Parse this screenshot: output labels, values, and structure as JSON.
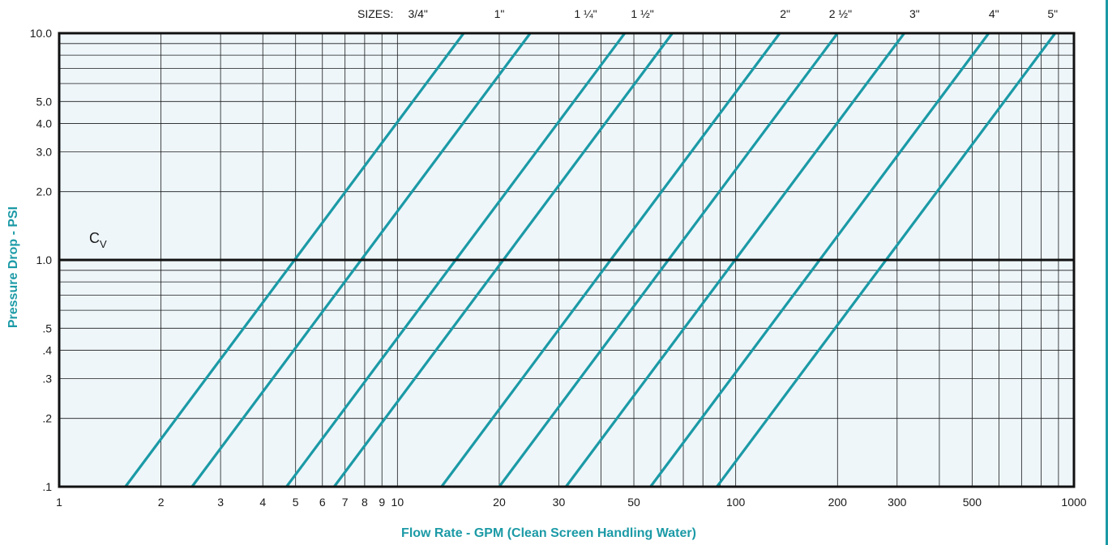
{
  "chart_data": {
    "type": "line",
    "title": "",
    "xlabel": "Flow Rate - GPM (Clean Screen Handling Water)",
    "ylabel": "Pressure Drop - PSI",
    "x_scale": "log",
    "y_scale": "log",
    "xlim": [
      1,
      1000
    ],
    "ylim": [
      0.1,
      10
    ],
    "grid": true,
    "x_ticks": [
      1,
      2,
      3,
      4,
      5,
      6,
      7,
      8,
      9,
      10,
      20,
      30,
      50,
      100,
      200,
      300,
      500,
      1000
    ],
    "x_tick_labels": [
      "1",
      "2",
      "3",
      "4",
      "5",
      "6",
      "7",
      "8",
      "9",
      "10",
      "20",
      "30",
      "50",
      "100",
      "200",
      "300",
      "500",
      "1000"
    ],
    "y_ticks": [
      0.1,
      0.2,
      0.3,
      0.4,
      0.5,
      1.0,
      2.0,
      3.0,
      4.0,
      5.0,
      10.0
    ],
    "y_tick_labels": [
      ".1",
      ".2",
      ".3",
      ".4",
      ".5",
      "1.0",
      "2.0",
      "3.0",
      "4.0",
      "5.0",
      "10.0"
    ],
    "sizes_label": "SIZES:",
    "reference_line": {
      "y": 1.0,
      "label": "C",
      "label_sub": "V"
    },
    "series": [
      {
        "x": [
          1.57,
          15.7
        ]
      },
      {
        "x": [
          2.47,
          24.7
        ]
      },
      {
        "x": [
          4.7,
          47
        ]
      },
      {
        "x": [
          6.5,
          65
        ]
      },
      {
        "x": [
          13.5,
          135
        ]
      },
      {
        "x": [
          20,
          200
        ]
      },
      {
        "x": [
          31.5,
          315
        ]
      },
      {
        "x": [
          56,
          560
        ]
      },
      {
        "x": [
          88,
          880
        ]
      }
    ],
    "size_labels": [
      {
        "label": "3/4\"",
        "x": 11.5
      },
      {
        "label": "1\"",
        "x": 20
      },
      {
        "label": "1 ¼\"",
        "x": 36
      },
      {
        "label": "1 ½\"",
        "x": 53
      },
      {
        "label": "2\"",
        "x": 140
      },
      {
        "label": "2 ½\"",
        "x": 204
      },
      {
        "label": "3\"",
        "x": 338
      },
      {
        "label": "4\"",
        "x": 580
      },
      {
        "label": "5\"",
        "x": 865
      }
    ]
  },
  "colors": {
    "plot_bg": "#eef6fa",
    "curve": "#1b9aa6",
    "axis_title": "#1b9aa6",
    "grid": "#1a1a1a",
    "right_edge": "#1b9aa6"
  }
}
